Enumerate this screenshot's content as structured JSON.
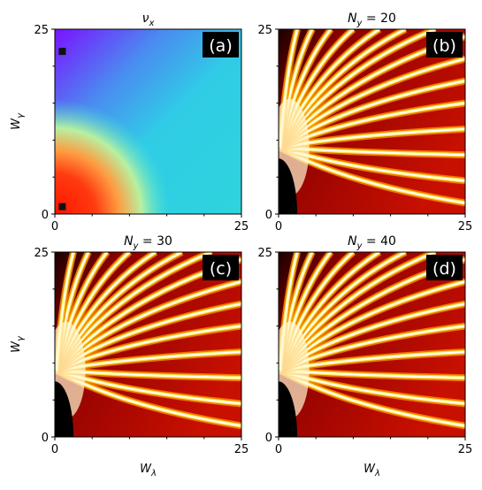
{
  "chart_data": [
    {
      "type": "heatmap",
      "colormap": "rainbow",
      "title": {
        "main": "ν",
        "sub": "x"
      },
      "panel_label": "(a)",
      "xlim": [
        0,
        25
      ],
      "ylim": [
        0,
        25
      ],
      "xticks": [
        0,
        25
      ],
      "yticks": [
        0,
        25
      ],
      "minor_ticks": [
        5,
        10,
        15,
        20
      ],
      "ylabel": {
        "main": "W",
        "sub": "γ"
      },
      "markers": {
        "color": "#111111",
        "x": [
          1,
          1
        ],
        "y": [
          22,
          1
        ]
      }
    },
    {
      "type": "heatmap",
      "colormap": "hot",
      "title": {
        "main": "N",
        "sub": "y",
        "rest": " = 20"
      },
      "panel_label": "(b)",
      "xlim": [
        0,
        25
      ],
      "ylim": [
        0,
        25
      ],
      "xticks": [
        0,
        25
      ],
      "yticks": [
        0,
        25
      ],
      "minor_ticks": [
        5,
        10,
        15,
        20
      ]
    },
    {
      "type": "heatmap",
      "colormap": "hot",
      "title": {
        "main": "N",
        "sub": "y",
        "rest": " = 30"
      },
      "panel_label": "(c)",
      "xlim": [
        0,
        25
      ],
      "ylim": [
        0,
        25
      ],
      "xticks": [
        0,
        25
      ],
      "yticks": [
        0,
        25
      ],
      "minor_ticks": [
        5,
        10,
        15,
        20
      ],
      "xlabel": {
        "main": "W",
        "sub": "λ"
      },
      "ylabel": {
        "main": "W",
        "sub": "γ"
      }
    },
    {
      "type": "heatmap",
      "colormap": "hot",
      "title": {
        "main": "N",
        "sub": "y",
        "rest": " = 40"
      },
      "panel_label": "(d)",
      "xlim": [
        0,
        25
      ],
      "ylim": [
        0,
        25
      ],
      "xticks": [
        0,
        25
      ],
      "yticks": [
        0,
        25
      ],
      "minor_ticks": [
        5,
        10,
        15,
        20
      ],
      "xlabel": {
        "main": "W",
        "sub": "λ"
      }
    }
  ]
}
